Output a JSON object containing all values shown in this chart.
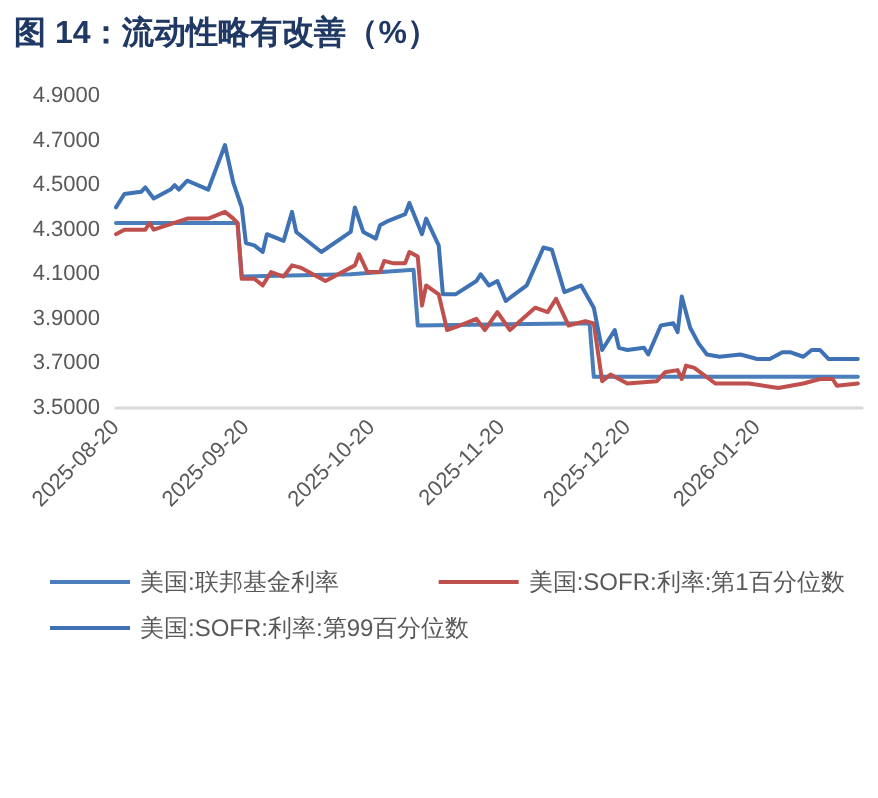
{
  "chart_data": {
    "type": "line",
    "title": "图 14：流动性略有改善（%）",
    "series": [
      {
        "name": "美国:联邦基金利率",
        "color": "#4a7ebb",
        "x": [
          "2025-08-20",
          "2025-09-18",
          "2025-09-19",
          "2025-10-15",
          "2025-10-30",
          "2025-10-31",
          "2025-12-11",
          "2025-12-12",
          "2026-02-13"
        ],
        "values": [
          4.33,
          4.33,
          4.09,
          4.1,
          4.12,
          3.87,
          3.88,
          3.64,
          3.64
        ]
      },
      {
        "name": "美国:SOFR:利率:第1百分位数",
        "color": "#c0504d",
        "x": [
          "2025-08-20",
          "2025-08-22",
          "2025-08-27",
          "2025-08-28",
          "2025-08-29",
          "2025-09-06",
          "2025-09-11",
          "2025-09-15",
          "2025-09-17",
          "2025-09-18",
          "2025-09-19",
          "2025-09-22",
          "2025-09-24",
          "2025-09-26",
          "2025-09-29",
          "2025-10-01",
          "2025-10-03",
          "2025-10-09",
          "2025-10-16",
          "2025-10-17",
          "2025-10-19",
          "2025-10-22",
          "2025-10-23",
          "2025-10-25",
          "2025-10-28",
          "2025-10-29",
          "2025-10-31",
          "2025-11-01",
          "2025-11-02",
          "2025-11-05",
          "2025-11-07",
          "2025-11-10",
          "2025-11-14",
          "2025-11-16",
          "2025-11-19",
          "2025-11-22",
          "2025-11-28",
          "2025-12-01",
          "2025-12-03",
          "2025-12-06",
          "2025-12-10",
          "2025-12-12",
          "2025-12-14",
          "2025-12-16",
          "2025-12-20",
          "2025-12-27",
          "2025-12-29",
          "2026-01-01",
          "2026-01-02",
          "2026-01-03",
          "2026-01-05",
          "2026-01-10",
          "2026-01-18",
          "2026-01-25",
          "2026-01-31",
          "2026-02-04",
          "2026-02-07",
          "2026-02-08",
          "2026-02-13"
        ],
        "values": [
          4.28,
          4.3,
          4.3,
          4.33,
          4.3,
          4.35,
          4.35,
          4.38,
          4.35,
          4.33,
          4.08,
          4.08,
          4.05,
          4.11,
          4.09,
          4.14,
          4.13,
          4.07,
          4.14,
          4.19,
          4.11,
          4.11,
          4.16,
          4.15,
          4.15,
          4.2,
          4.18,
          3.96,
          4.05,
          4.01,
          3.85,
          3.87,
          3.9,
          3.85,
          3.93,
          3.85,
          3.95,
          3.93,
          3.99,
          3.87,
          3.89,
          3.88,
          3.62,
          3.65,
          3.61,
          3.62,
          3.66,
          3.67,
          3.63,
          3.69,
          3.68,
          3.61,
          3.61,
          3.59,
          3.61,
          3.63,
          3.63,
          3.6,
          3.61
        ]
      },
      {
        "name": "美国:SOFR:利率:第99百分位数",
        "color": "#3f72b5",
        "x": [
          "2025-08-20",
          "2025-08-22",
          "2025-08-26",
          "2025-08-27",
          "2025-08-29",
          "2025-09-02",
          "2025-09-03",
          "2025-09-04",
          "2025-09-06",
          "2025-09-11",
          "2025-09-15",
          "2025-09-17",
          "2025-09-19",
          "2025-09-20",
          "2025-09-22",
          "2025-09-24",
          "2025-09-25",
          "2025-09-29",
          "2025-10-01",
          "2025-10-02",
          "2025-10-08",
          "2025-10-15",
          "2025-10-16",
          "2025-10-18",
          "2025-10-21",
          "2025-10-22",
          "2025-10-24",
          "2025-10-28",
          "2025-10-29",
          "2025-11-01",
          "2025-11-02",
          "2025-11-05",
          "2025-11-06",
          "2025-11-09",
          "2025-11-14",
          "2025-11-15",
          "2025-11-17",
          "2025-11-19",
          "2025-11-21",
          "2025-11-26",
          "2025-11-30",
          "2025-12-02",
          "2025-12-05",
          "2025-12-09",
          "2025-12-12",
          "2025-12-14",
          "2025-12-17",
          "2025-12-18",
          "2025-12-20",
          "2025-12-24",
          "2025-12-25",
          "2025-12-28",
          "2025-12-31",
          "2026-01-01",
          "2026-01-02",
          "2026-01-04",
          "2026-01-06",
          "2026-01-08",
          "2026-01-11",
          "2026-01-16",
          "2026-01-20",
          "2026-01-23",
          "2026-01-26",
          "2026-01-28",
          "2026-01-31",
          "2026-02-02",
          "2026-02-04",
          "2026-02-06",
          "2026-02-09",
          "2026-02-13"
        ],
        "values": [
          4.4,
          4.46,
          4.47,
          4.49,
          4.44,
          4.48,
          4.5,
          4.48,
          4.52,
          4.48,
          4.68,
          4.51,
          4.4,
          4.24,
          4.23,
          4.2,
          4.28,
          4.25,
          4.38,
          4.29,
          4.2,
          4.29,
          4.4,
          4.29,
          4.26,
          4.32,
          4.34,
          4.37,
          4.42,
          4.28,
          4.35,
          4.23,
          4.01,
          4.01,
          4.07,
          4.1,
          4.05,
          4.07,
          3.98,
          4.05,
          4.22,
          4.21,
          4.02,
          4.05,
          3.95,
          3.76,
          3.85,
          3.77,
          3.76,
          3.77,
          3.74,
          3.87,
          3.88,
          3.84,
          4.0,
          3.86,
          3.79,
          3.74,
          3.73,
          3.74,
          3.72,
          3.72,
          3.75,
          3.75,
          3.73,
          3.76,
          3.76,
          3.72,
          3.72,
          3.72
        ]
      }
    ],
    "xlim": [
      "2025-08-20",
      "2026-02-14"
    ],
    "xticks": [
      "2025-08-20",
      "2025-09-20",
      "2025-10-20",
      "2025-11-20",
      "2025-12-20",
      "2026-01-20"
    ],
    "ylim": [
      3.5,
      4.9
    ],
    "yticks": [
      {
        "value": 3.5,
        "label": "3.5000"
      },
      {
        "value": 3.7,
        "label": "3.7000"
      },
      {
        "value": 3.9,
        "label": "3.9000"
      },
      {
        "value": 4.1,
        "label": "4.1000"
      },
      {
        "value": 4.3,
        "label": "4.3000"
      },
      {
        "value": 4.5,
        "label": "4.5000"
      },
      {
        "value": 4.7,
        "label": "4.7000"
      },
      {
        "value": 4.9,
        "label": "4.9000"
      }
    ],
    "grid": false,
    "legend": "bottom",
    "marker": "none",
    "line_style": "solid"
  }
}
